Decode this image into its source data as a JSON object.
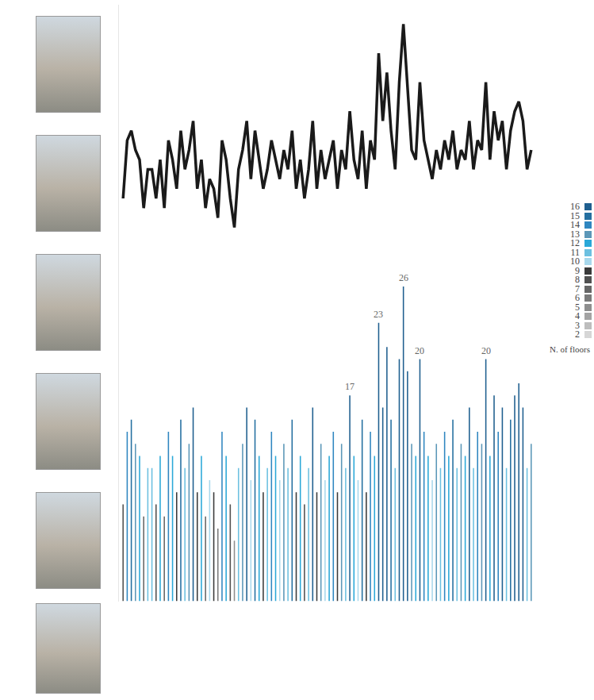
{
  "chart_data": {
    "type": "line",
    "tick_labels": false,
    "grid": false,
    "ylim": [
      0,
      28
    ],
    "values": [
      8,
      14,
      15,
      13,
      12,
      7,
      11,
      11,
      8,
      12,
      7,
      14,
      12,
      9,
      15,
      11,
      13,
      16,
      9,
      12,
      7,
      10,
      9,
      6,
      14,
      12,
      8,
      5,
      11,
      13,
      16,
      10,
      15,
      12,
      9,
      11,
      14,
      12,
      10,
      13,
      11,
      15,
      9,
      12,
      8,
      11,
      16,
      9,
      13,
      10,
      12,
      14,
      9,
      13,
      11,
      17,
      12,
      10,
      15,
      9,
      14,
      12,
      23,
      16,
      21,
      15,
      11,
      20,
      26,
      19,
      13,
      12,
      20,
      14,
      12,
      10,
      13,
      11,
      14,
      12,
      15,
      11,
      13,
      12,
      16,
      11,
      14,
      13,
      20,
      12,
      17,
      14,
      16,
      11,
      15,
      17,
      18,
      16,
      11,
      13
    ],
    "color": "#1a1a1a",
    "annotations": [
      {
        "index": 55,
        "text": "17"
      },
      {
        "index": 62,
        "text": "23"
      },
      {
        "index": 68,
        "text": "26"
      },
      {
        "index": 72,
        "text": "20"
      },
      {
        "index": 88,
        "text": "20"
      }
    ],
    "legend_title": "N. of floors",
    "floor_scale": [
      {
        "floors": 16,
        "color": "#1f5f8f"
      },
      {
        "floors": 15,
        "color": "#246fa0"
      },
      {
        "floors": 14,
        "color": "#2f86c0"
      },
      {
        "floors": 13,
        "color": "#5b97b8"
      },
      {
        "floors": 12,
        "color": "#2aa8d8"
      },
      {
        "floors": 11,
        "color": "#6cc0e0"
      },
      {
        "floors": 10,
        "color": "#a8d8ec"
      },
      {
        "floors": 9,
        "color": "#3a3a3a"
      },
      {
        "floors": 8,
        "color": "#505050"
      },
      {
        "floors": 7,
        "color": "#666666"
      },
      {
        "floors": 6,
        "color": "#7a7a7a"
      },
      {
        "floors": 5,
        "color": "#8e8e8e"
      },
      {
        "floors": 4,
        "color": "#a3a3a3"
      },
      {
        "floors": 3,
        "color": "#bdbdbd"
      },
      {
        "floors": 2,
        "color": "#d6d6d6"
      }
    ]
  }
}
